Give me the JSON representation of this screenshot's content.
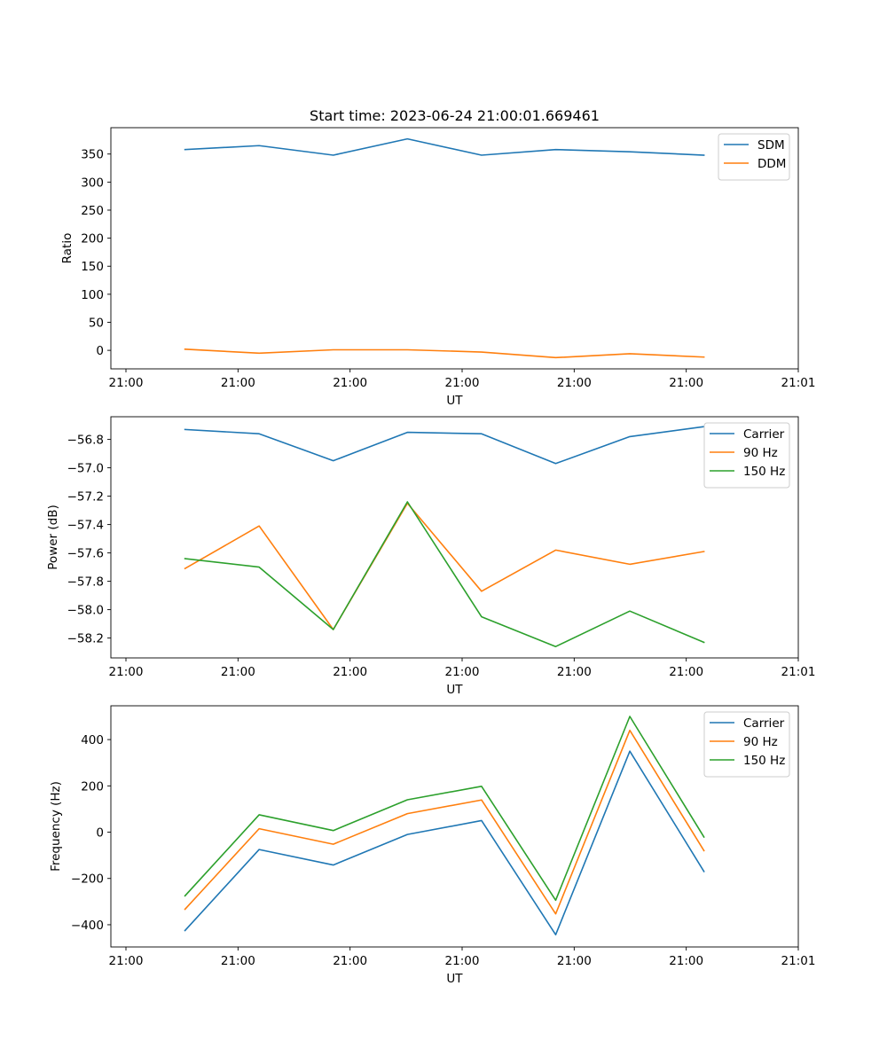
{
  "chart_data": [
    {
      "type": "line",
      "title": "Start time: 2023-06-24 21:00:01.669461",
      "xlabel": "UT",
      "ylabel": "Ratio",
      "x_tick_labels": [
        "21:00",
        "21:00",
        "21:00",
        "21:00",
        "21:00",
        "21:00",
        "21:01"
      ],
      "y_ticks": [
        0,
        50,
        100,
        150,
        200,
        250,
        300,
        350
      ],
      "ylim": [
        -33,
        397
      ],
      "x_seconds_from_start": [
        3.3,
        6.6,
        9.9,
        13.2,
        16.5,
        19.8,
        23.1,
        26.4
      ],
      "xlim_seconds": [
        0,
        30.6
      ],
      "legend_position": "upper right",
      "grid": false,
      "series": [
        {
          "name": "SDM",
          "color": "#1f77b4",
          "values": [
            358,
            365,
            348,
            377,
            348,
            358,
            354,
            348
          ]
        },
        {
          "name": "DDM",
          "color": "#ff7f0e",
          "values": [
            2,
            -5,
            1,
            1,
            -3,
            -13,
            -6,
            -12
          ]
        }
      ]
    },
    {
      "type": "line",
      "title": "",
      "xlabel": "UT",
      "ylabel": "Power (dB)",
      "x_tick_labels": [
        "21:00",
        "21:00",
        "21:00",
        "21:00",
        "21:00",
        "21:00",
        "21:01"
      ],
      "y_ticks": [
        -58.2,
        -58.0,
        -57.8,
        -57.6,
        -57.4,
        -57.2,
        -57.0,
        -56.8
      ],
      "y_tick_labels": [
        "−58.2",
        "−58.0",
        "−57.8",
        "−57.6",
        "−57.4",
        "−57.2",
        "−57.0",
        "−56.8"
      ],
      "ylim": [
        -58.34,
        -56.64
      ],
      "x_seconds_from_start": [
        3.3,
        6.6,
        9.9,
        13.2,
        16.5,
        19.8,
        23.1,
        26.4
      ],
      "xlim_seconds": [
        0,
        30.6
      ],
      "legend_position": "upper right",
      "grid": false,
      "series": [
        {
          "name": "Carrier",
          "color": "#1f77b4",
          "values": [
            -56.73,
            -56.76,
            -56.95,
            -56.75,
            -56.76,
            -56.97,
            -56.78,
            -56.71
          ]
        },
        {
          "name": "90 Hz",
          "color": "#ff7f0e",
          "values": [
            -57.71,
            -57.41,
            -58.14,
            -57.25,
            -57.87,
            -57.58,
            -57.68,
            -57.59
          ]
        },
        {
          "name": "150 Hz",
          "color": "#2ca02c",
          "values": [
            -57.64,
            -57.7,
            -58.14,
            -57.24,
            -58.05,
            -58.26,
            -58.01,
            -58.23
          ]
        }
      ]
    },
    {
      "type": "line",
      "title": "",
      "xlabel": "UT",
      "ylabel": "Frequency (Hz)",
      "x_tick_labels": [
        "21:00",
        "21:00",
        "21:00",
        "21:00",
        "21:00",
        "21:00",
        "21:01"
      ],
      "y_ticks": [
        -400,
        -200,
        0,
        200,
        400
      ],
      "y_tick_labels": [
        "−400",
        "−200",
        "0",
        "200",
        "400"
      ],
      "ylim": [
        -496,
        546
      ],
      "x_seconds_from_start": [
        3.3,
        6.6,
        9.9,
        13.2,
        16.5,
        19.8,
        23.1,
        26.4
      ],
      "xlim_seconds": [
        0,
        30.6
      ],
      "legend_position": "upper right",
      "grid": false,
      "series": [
        {
          "name": "Carrier",
          "color": "#1f77b4",
          "values": [
            -425,
            -75,
            -142,
            -10,
            50,
            -443,
            350,
            -170
          ]
        },
        {
          "name": "90 Hz",
          "color": "#ff7f0e",
          "values": [
            -333,
            15,
            -52,
            80,
            139,
            -353,
            440,
            -80
          ]
        },
        {
          "name": "150 Hz",
          "color": "#2ca02c",
          "values": [
            -275,
            75,
            7,
            140,
            198,
            -294,
            500,
            -21
          ]
        }
      ]
    }
  ]
}
